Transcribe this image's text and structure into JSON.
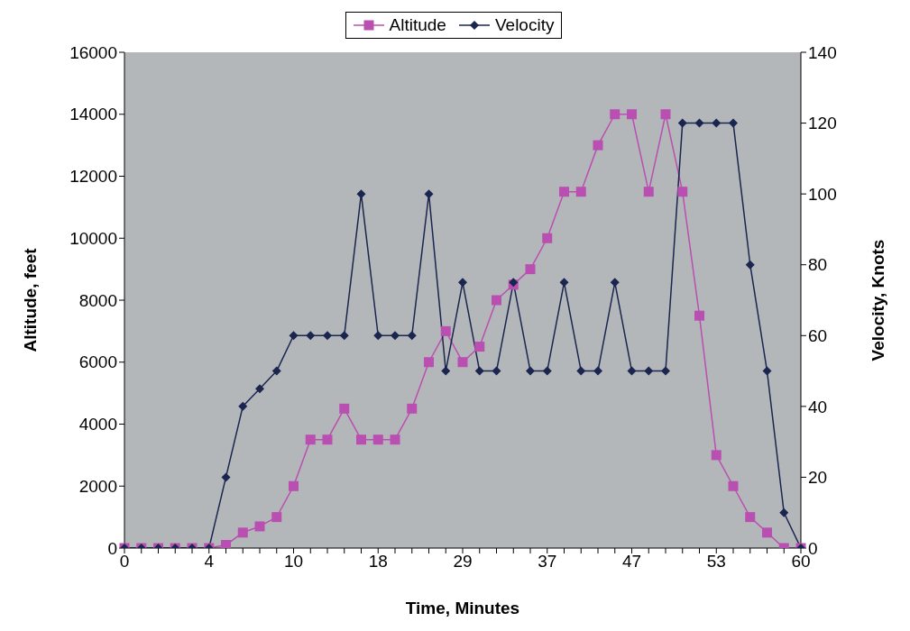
{
  "chart_data": {
    "type": "line",
    "xlabel": "Time, Minutes",
    "ylabel": "Altitude, feet",
    "y2label": "Velocity, Knots",
    "categories": [
      "0",
      null,
      null,
      null,
      null,
      "4",
      null,
      null,
      null,
      null,
      "10",
      null,
      null,
      null,
      null,
      "18",
      null,
      null,
      null,
      null,
      "29",
      null,
      null,
      null,
      null,
      "37",
      null,
      null,
      null,
      null,
      "47",
      null,
      null,
      null,
      null,
      "53",
      null,
      null,
      null,
      null,
      "60"
    ],
    "series": [
      {
        "name": "Altitude",
        "color": "#b94fb0",
        "marker": "square",
        "values": [
          0,
          0,
          0,
          0,
          0,
          0,
          100,
          500,
          700,
          1000,
          2000,
          3500,
          3500,
          4500,
          3500,
          3500,
          3500,
          4500,
          6000,
          7000,
          6000,
          6500,
          8000,
          8500,
          9000,
          10000,
          11500,
          11500,
          13000,
          14000,
          14000,
          11500,
          14000,
          11500,
          7500,
          3000,
          2000,
          1000,
          500,
          0,
          0
        ]
      },
      {
        "name": "Velocity",
        "color": "#1a2550",
        "marker": "diamond",
        "axis": "y2",
        "values": [
          0,
          0,
          0,
          0,
          0,
          0,
          20,
          40,
          45,
          50,
          60,
          60,
          60,
          60,
          100,
          60,
          60,
          60,
          100,
          50,
          75,
          50,
          50,
          75,
          50,
          50,
          75,
          50,
          50,
          75,
          50,
          50,
          50,
          120,
          120,
          120,
          120,
          80,
          50,
          10,
          0
        ]
      }
    ],
    "ylim": [
      0,
      16000
    ],
    "yticks": [
      0,
      2000,
      4000,
      6000,
      8000,
      10000,
      12000,
      14000,
      16000
    ],
    "y2lim": [
      0,
      140
    ],
    "y2ticks": [
      0,
      20,
      40,
      60,
      80,
      100,
      120,
      140
    ],
    "grid": false,
    "legend": "top"
  }
}
